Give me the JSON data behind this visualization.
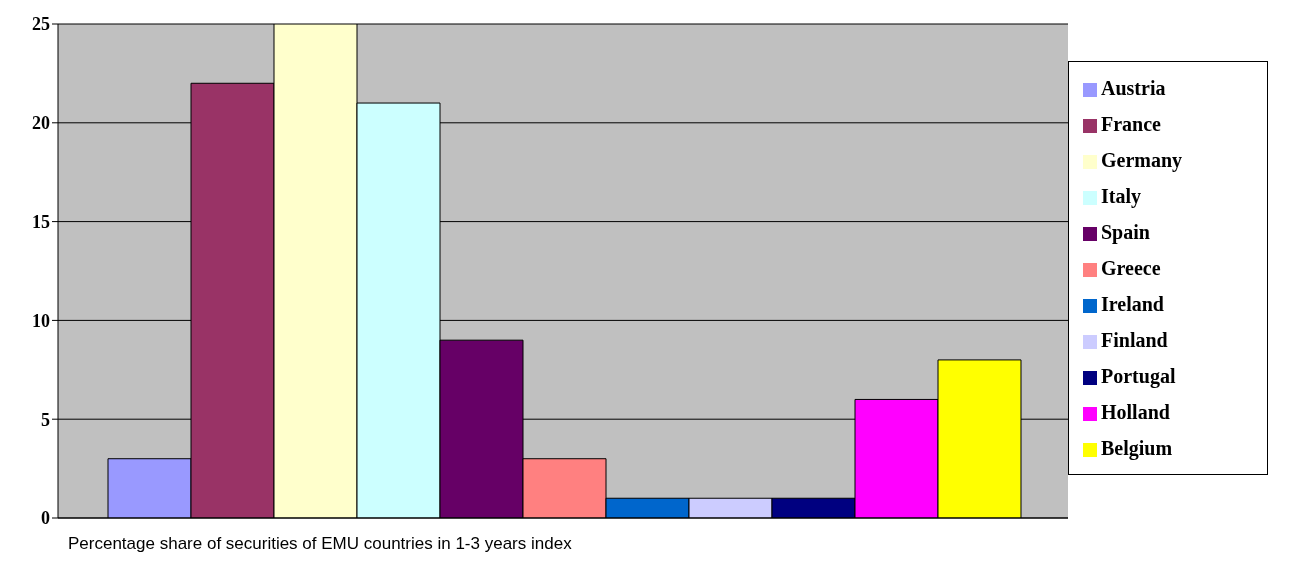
{
  "chart_data": {
    "type": "bar",
    "categories": [
      null
    ],
    "series": [
      {
        "name": "Austria",
        "color": "#9999ff",
        "values": [
          3
        ]
      },
      {
        "name": "France",
        "color": "#993366",
        "values": [
          22
        ]
      },
      {
        "name": "Germany",
        "color": "#ffffcc",
        "values": [
          25
        ]
      },
      {
        "name": "Italy",
        "color": "#ccffff",
        "values": [
          21
        ]
      },
      {
        "name": "Spain",
        "color": "#660066",
        "values": [
          9
        ]
      },
      {
        "name": "Greece",
        "color": "#ff8080",
        "values": [
          3
        ]
      },
      {
        "name": "Ireland",
        "color": "#0066cc",
        "values": [
          1
        ]
      },
      {
        "name": "Finland",
        "color": "#ccccff",
        "values": [
          1
        ]
      },
      {
        "name": "Portugal",
        "color": "#000080",
        "values": [
          1
        ]
      },
      {
        "name": "Holland",
        "color": "#ff00ff",
        "values": [
          6
        ]
      },
      {
        "name": "Belgium",
        "color": "#ffff00",
        "values": [
          8
        ]
      }
    ],
    "ylim": [
      0,
      25
    ],
    "yticks": [
      0,
      5,
      10,
      15,
      20,
      25
    ],
    "grid": "y",
    "legend": "right",
    "annotations": [
      "Percentage share of securities of EMU countries in 1-3 years index"
    ]
  }
}
